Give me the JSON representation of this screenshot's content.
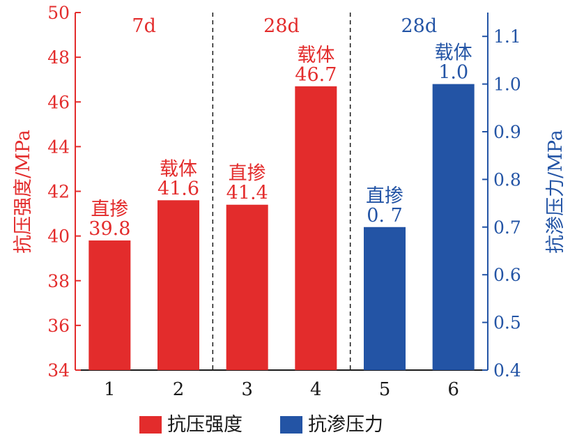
{
  "chart_data": {
    "type": "bar",
    "categories": [
      "1",
      "2",
      "3",
      "4",
      "5",
      "6"
    ],
    "series": [
      {
        "name": "抗压强度",
        "axis": "left",
        "color": "#e32c2c",
        "values": [
          39.8,
          41.6,
          41.4,
          46.7,
          null,
          null
        ],
        "labels": [
          "39.8",
          "41.6",
          "41.4",
          "46.7",
          "",
          ""
        ]
      },
      {
        "name": "抗渗压力",
        "axis": "right",
        "color": "#2354a5",
        "values": [
          null,
          null,
          null,
          null,
          0.7,
          1.0
        ],
        "labels": [
          "",
          "",
          "",
          "",
          "0. 7",
          "1.0"
        ]
      }
    ],
    "bar_tags": [
      "直掺",
      "载体",
      "直掺",
      "载体",
      "直掺",
      "载体"
    ],
    "groups": [
      {
        "label": "7d",
        "color": "#e32c2c"
      },
      {
        "label": "28d",
        "color": "#e32c2c"
      },
      {
        "label": "28d",
        "color": "#2354a5"
      }
    ],
    "ylabel_left": "抗压强度/MPa",
    "ylabel_right": "抗渗压力/MPa",
    "ylim_left": [
      34,
      50
    ],
    "ylim_right": [
      0.4,
      1.15
    ],
    "yticks_left": [
      "34",
      "36",
      "38",
      "40",
      "42",
      "44",
      "46",
      "48",
      "50"
    ],
    "yticks_right": [
      "0.4",
      "0.5",
      "0.6",
      "0.7",
      "0.8",
      "0.9",
      "1.0",
      "1.1"
    ],
    "legend_position": "bottom-center",
    "grid": false
  }
}
